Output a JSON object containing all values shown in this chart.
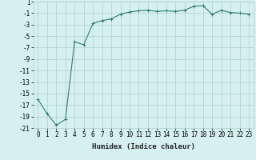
{
  "x": [
    0,
    1,
    2,
    3,
    4,
    5,
    6,
    7,
    8,
    9,
    10,
    11,
    12,
    13,
    14,
    15,
    16,
    17,
    18,
    19,
    20,
    21,
    22,
    23
  ],
  "y": [
    -16,
    -18.5,
    -20.5,
    -19.5,
    -6,
    -6.5,
    -2.8,
    -2.3,
    -2.0,
    -1.2,
    -0.8,
    -0.6,
    -0.5,
    -0.7,
    -0.6,
    -0.7,
    -0.5,
    0.2,
    0.3,
    -1.2,
    -0.5,
    -0.9,
    -1.0,
    -1.2
  ],
  "line_color": "#2e7d6e",
  "marker": "+",
  "marker_size": 3,
  "bg_color": "#d6f0f0",
  "grid_color": "#b0cece",
  "xlabel": "Humidex (Indice chaleur)",
  "xlim": [
    -0.5,
    23.5
  ],
  "ylim": [
    -21,
    1
  ],
  "yticks": [
    1,
    -1,
    -3,
    -5,
    -7,
    -9,
    -11,
    -13,
    -15,
    -17,
    -19,
    -21
  ],
  "xticks": [
    0,
    1,
    2,
    3,
    4,
    5,
    6,
    7,
    8,
    9,
    10,
    11,
    12,
    13,
    14,
    15,
    16,
    17,
    18,
    19,
    20,
    21,
    22,
    23
  ],
  "xlabel_fontsize": 6.5,
  "tick_fontsize": 5.5,
  "line_width": 0.8
}
